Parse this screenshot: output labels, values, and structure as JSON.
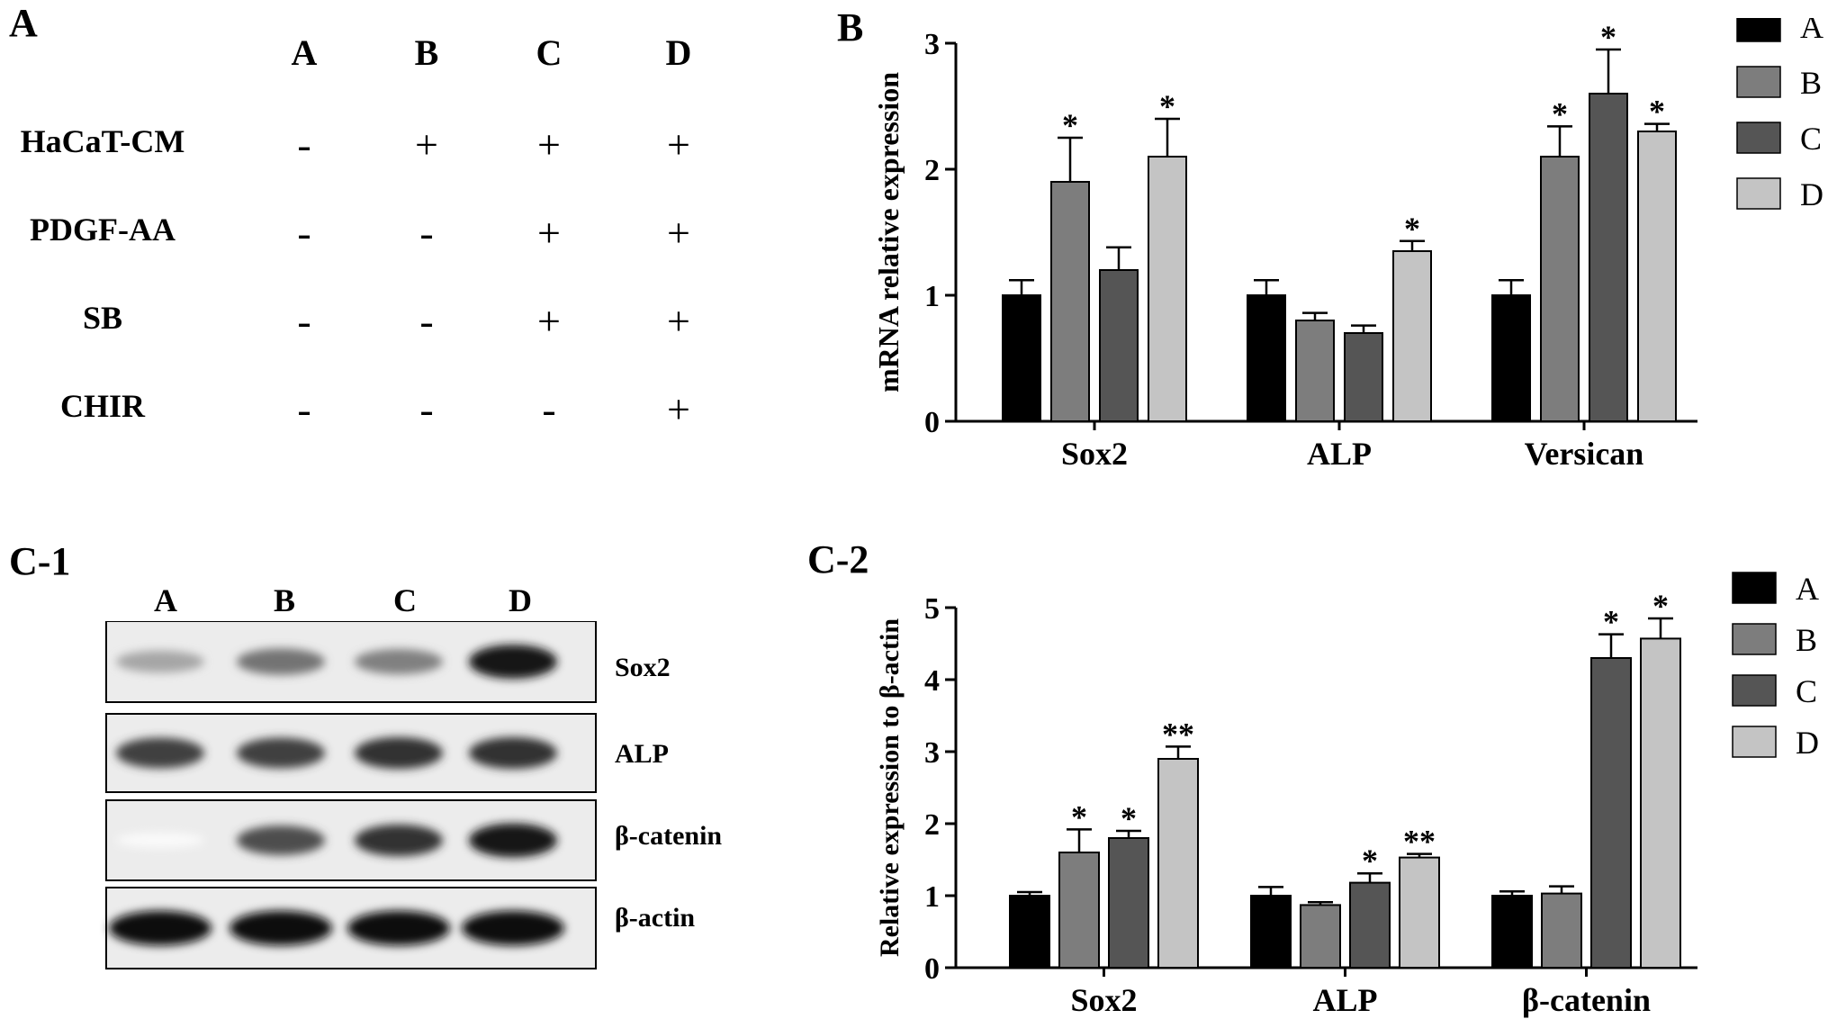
{
  "panel_a": {
    "letter": "A",
    "columns": [
      "A",
      "B",
      "C",
      "D"
    ],
    "rows": [
      {
        "label": "HaCaT-CM",
        "signs": [
          "-",
          "+",
          "+",
          "+"
        ]
      },
      {
        "label": "PDGF-AA",
        "signs": [
          "-",
          "-",
          "+",
          "+"
        ]
      },
      {
        "label": "SB",
        "signs": [
          "-",
          "-",
          "+",
          "+"
        ]
      },
      {
        "label": "CHIR",
        "signs": [
          "-",
          "-",
          "-",
          "+"
        ]
      }
    ]
  },
  "panel_c1": {
    "letter": "C-1",
    "lanes": [
      "A",
      "B",
      "C",
      "D"
    ],
    "blots": [
      {
        "label": "Sox2",
        "intensities": [
          0.35,
          0.55,
          0.5,
          0.9
        ]
      },
      {
        "label": "ALP",
        "intensities": [
          0.75,
          0.75,
          0.8,
          0.8
        ]
      },
      {
        "label": "β-catenin",
        "intensities": [
          0.02,
          0.7,
          0.8,
          0.9
        ]
      },
      {
        "label": "β-actin",
        "intensities": [
          0.95,
          0.95,
          0.95,
          0.95
        ]
      }
    ]
  },
  "colors": {
    "A": "#000000",
    "B": "#7d7d7d",
    "C": "#555555",
    "D": "#c4c4c4"
  },
  "chart_data": [
    {
      "type": "bar",
      "panel_letter": "B",
      "ylabel": "mRNA relative expression",
      "ylim": [
        0,
        3
      ],
      "yticks": [
        "0",
        "1",
        "2",
        "3"
      ],
      "categories": [
        "Sox2",
        "ALP",
        "Versican"
      ],
      "legend": [
        "A",
        "B",
        "C",
        "D"
      ],
      "legend_position": "right",
      "series": [
        {
          "name": "A",
          "values": [
            1.0,
            1.0,
            1.0
          ],
          "errors": [
            0.12,
            0.12,
            0.12
          ],
          "sig": [
            "",
            "",
            ""
          ]
        },
        {
          "name": "B",
          "values": [
            1.9,
            0.8,
            2.1
          ],
          "errors": [
            0.35,
            0.06,
            0.24
          ],
          "sig": [
            "*",
            "",
            "*"
          ]
        },
        {
          "name": "C",
          "values": [
            1.2,
            0.7,
            2.6
          ],
          "errors": [
            0.18,
            0.06,
            0.35
          ],
          "sig": [
            "",
            "",
            "*"
          ]
        },
        {
          "name": "D",
          "values": [
            2.1,
            1.35,
            2.3
          ],
          "errors": [
            0.3,
            0.08,
            0.06
          ],
          "sig": [
            "*",
            "*",
            "*"
          ]
        }
      ]
    },
    {
      "type": "bar",
      "panel_letter": "C-2",
      "ylabel": "Relative expression to β-actin",
      "ylim": [
        0,
        5
      ],
      "yticks": [
        "0",
        "1",
        "2",
        "3",
        "4",
        "5"
      ],
      "categories": [
        "Sox2",
        "ALP",
        "β-catenin"
      ],
      "legend": [
        "A",
        "B",
        "C",
        "D"
      ],
      "legend_position": "right",
      "series": [
        {
          "name": "A",
          "values": [
            1.0,
            1.0,
            1.0
          ],
          "errors": [
            0.05,
            0.12,
            0.06
          ],
          "sig": [
            "",
            "",
            ""
          ]
        },
        {
          "name": "B",
          "values": [
            1.6,
            0.87,
            1.03
          ],
          "errors": [
            0.32,
            0.04,
            0.1
          ],
          "sig": [
            "*",
            "",
            ""
          ]
        },
        {
          "name": "C",
          "values": [
            1.8,
            1.18,
            4.3
          ],
          "errors": [
            0.1,
            0.13,
            0.33
          ],
          "sig": [
            "*",
            "*",
            "*"
          ]
        },
        {
          "name": "D",
          "values": [
            2.9,
            1.53,
            4.57
          ],
          "errors": [
            0.17,
            0.05,
            0.28
          ],
          "sig": [
            "**",
            "**",
            "*"
          ]
        }
      ]
    }
  ]
}
